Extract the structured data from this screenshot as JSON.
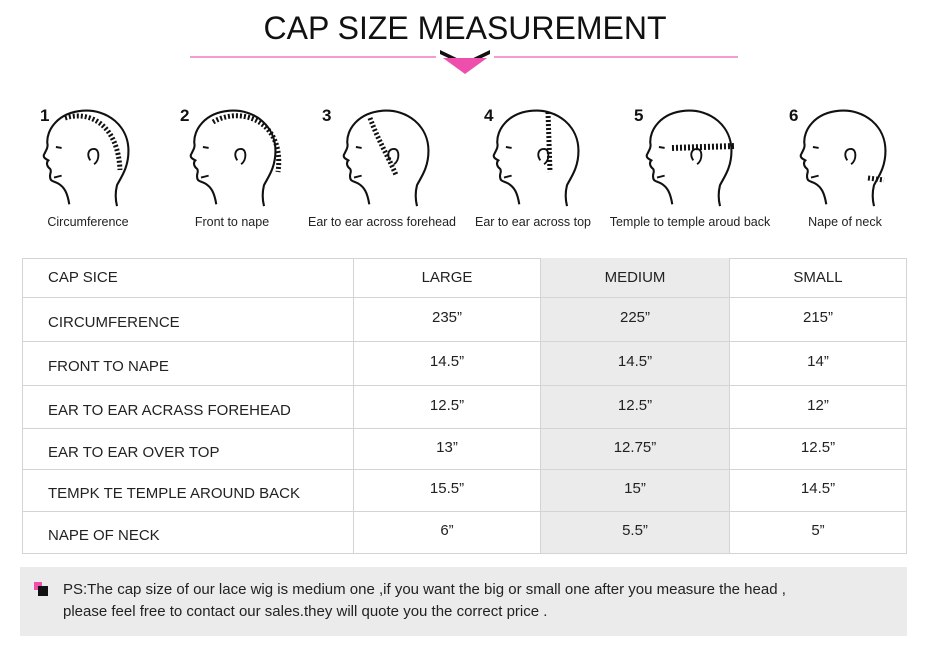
{
  "header": {
    "title": "CAP SIZE MEASUREMENT"
  },
  "steps": [
    {
      "number": "1",
      "label": "Circumference"
    },
    {
      "number": "2",
      "label": "Front to nape"
    },
    {
      "number": "3",
      "label": "Ear to ear across forehead"
    },
    {
      "number": "4",
      "label": "Ear to ear across top"
    },
    {
      "number": "5",
      "label": "Temple to temple aroud back"
    },
    {
      "number": "6",
      "label": "Nape of neck"
    }
  ],
  "table": {
    "header": [
      "CAP SICE",
      "LARGE",
      "MEDIUM",
      "SMALL"
    ],
    "rows": [
      [
        "CIRCUMFERENCE",
        "235”",
        "225”",
        "215”"
      ],
      [
        "FRONT TO NAPE",
        "14.5”",
        "14.5”",
        "14”"
      ],
      [
        "EAR TO EAR ACRASS FOREHEAD",
        "12.5”",
        "12.5”",
        "12”"
      ],
      [
        "EAR TO EAR OVER TOP",
        "13”",
        "12.75”",
        "12.5”"
      ],
      [
        "TEMPK TE TEMPLE AROUND BACK",
        "15.5”",
        "15”",
        "14.5”"
      ],
      [
        "NAPE OF NECK",
        "6”",
        "5.5”",
        "5”"
      ]
    ]
  },
  "note": {
    "lines": [
      "PS:The cap size of our lace wig is medium one ,if you want the big or small one after you measure the head ,",
      "please feel free to contact our sales.they will quote you the correct price ."
    ]
  }
}
